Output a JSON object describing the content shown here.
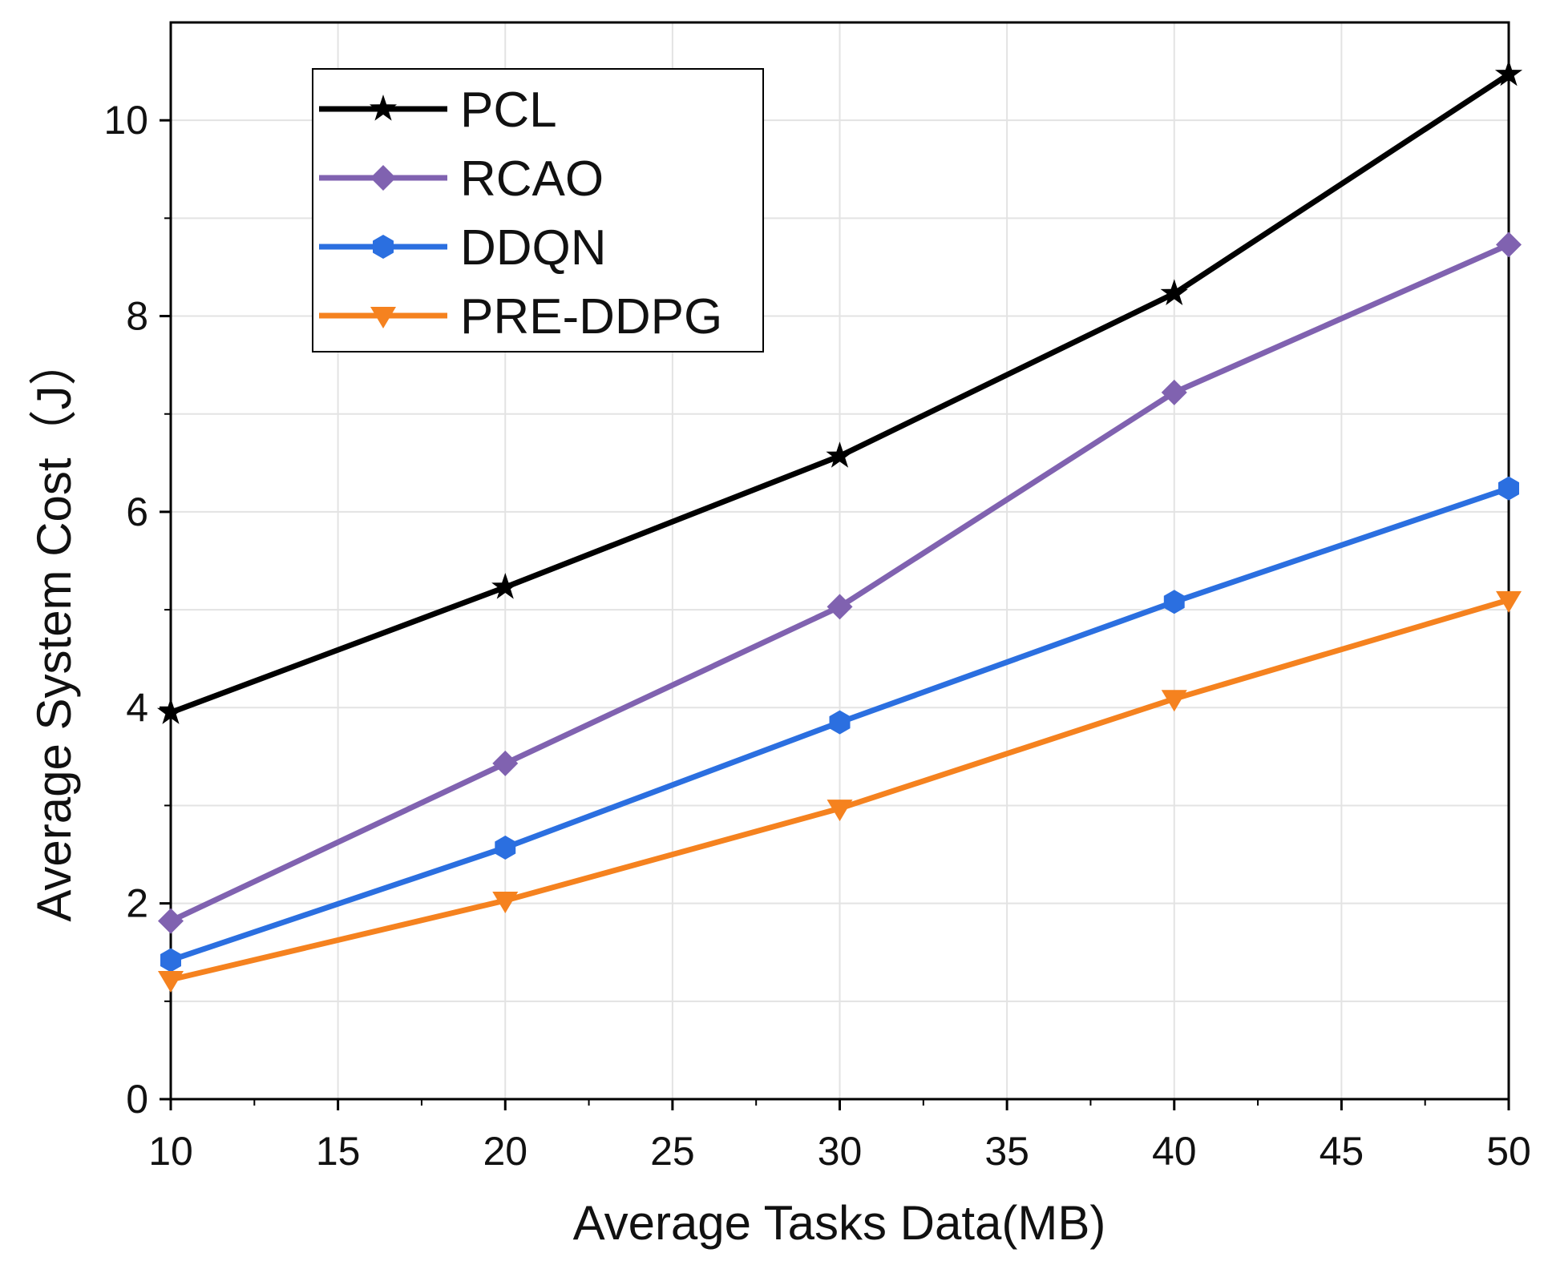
{
  "chart_data": {
    "type": "line",
    "title": "",
    "xlabel": "Average Tasks Data(MB)",
    "ylabel": "Average System Cost（J）",
    "xlim": [
      10,
      50
    ],
    "ylim": [
      0,
      11
    ],
    "x_ticks": [
      10,
      15,
      20,
      25,
      30,
      35,
      40,
      45,
      50
    ],
    "y_ticks": [
      0,
      2,
      4,
      6,
      8,
      10
    ],
    "x_tick_labels": [
      "10",
      "15",
      "20",
      "25",
      "30",
      "35",
      "40",
      "45",
      "50"
    ],
    "y_tick_labels": [
      "0",
      "2",
      "4",
      "6",
      "8",
      "10"
    ],
    "x": [
      10,
      20,
      30,
      40,
      50
    ],
    "grid": true,
    "legend_position": "top-left",
    "series": [
      {
        "name": "PCL",
        "values": [
          3.95,
          5.23,
          6.57,
          8.23,
          10.47
        ],
        "color": "#000000",
        "marker": "star"
      },
      {
        "name": "RCAO",
        "values": [
          1.82,
          3.43,
          5.03,
          7.22,
          8.73
        ],
        "color": "#8062b0",
        "marker": "diamond"
      },
      {
        "name": "DDQN",
        "values": [
          1.42,
          2.57,
          3.85,
          5.08,
          6.24
        ],
        "color": "#2b6fe0",
        "marker": "hexagon"
      },
      {
        "name": "PRE-DDPG",
        "values": [
          1.22,
          2.03,
          2.97,
          4.09,
          5.1
        ],
        "color": "#f5821f",
        "marker": "triangle-down"
      }
    ]
  }
}
